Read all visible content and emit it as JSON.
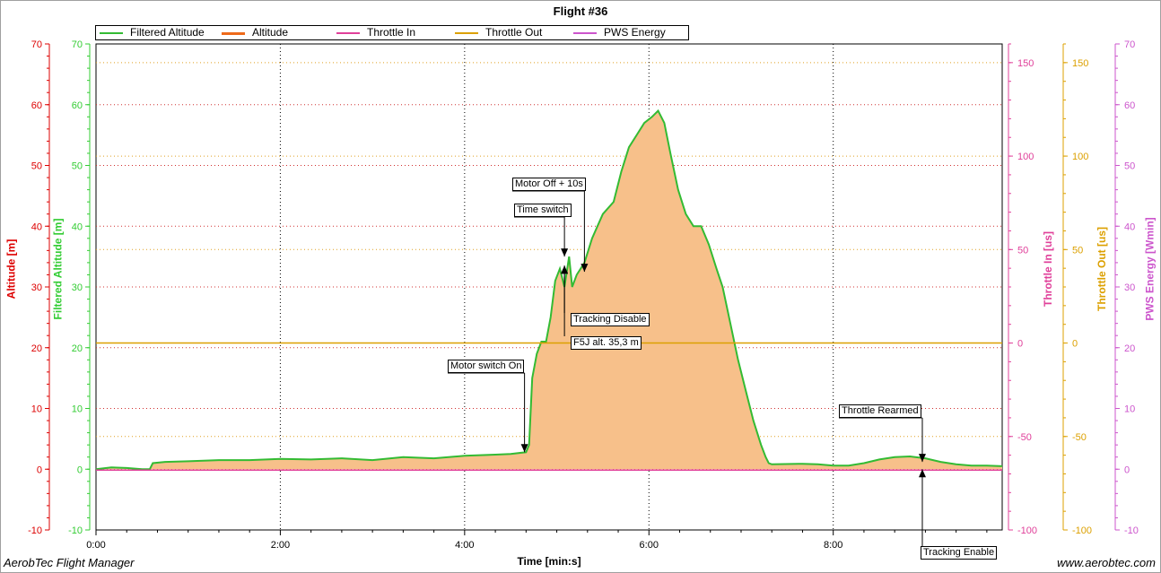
{
  "app": {
    "name": "AerobTec Flight Manager",
    "url": "www.aerobtec.com"
  },
  "chart_data": {
    "type": "area",
    "title": "Flight #36",
    "xlabel": "Time [min:s]",
    "x_unit": "seconds",
    "xlim": [
      0,
      590
    ],
    "x_ticks": [
      {
        "value": 0,
        "label": "0:00"
      },
      {
        "value": 120,
        "label": "2:00"
      },
      {
        "value": 240,
        "label": "4:00"
      },
      {
        "value": 360,
        "label": "6:00"
      },
      {
        "value": 480,
        "label": "8:00"
      }
    ],
    "grid": true,
    "axes": [
      {
        "id": "altitude",
        "label": "Altitude [m]",
        "color": "#dd0000",
        "side": "left",
        "ylim": [
          -10,
          70
        ],
        "ticks": [
          -10,
          0,
          10,
          20,
          30,
          40,
          50,
          60,
          70
        ]
      },
      {
        "id": "filtered",
        "label": "Filtered Altitude [m]",
        "color": "#33cc33",
        "side": "left",
        "ylim": [
          -10,
          70
        ],
        "ticks": [
          -10,
          0,
          10,
          20,
          30,
          40,
          50,
          60,
          70
        ]
      },
      {
        "id": "throttle_in",
        "label": "Throttle In [us]",
        "color": "#e0409a",
        "side": "right",
        "ylim": [
          -100,
          160
        ],
        "ticks": [
          -100,
          -50,
          0,
          50,
          100,
          150
        ]
      },
      {
        "id": "throttle_out",
        "label": "Throttle Out [us]",
        "color": "#dca000",
        "side": "right",
        "ylim": [
          -100,
          160
        ],
        "ticks": [
          -100,
          -50,
          0,
          50,
          100,
          150
        ]
      },
      {
        "id": "pws",
        "label": "PWS Energy [Wmin]",
        "color": "#cc55cc",
        "side": "right",
        "ylim": [
          -10,
          70
        ],
        "ticks": [
          -10,
          0,
          10,
          20,
          30,
          40,
          50,
          60,
          70
        ]
      }
    ],
    "legend": {
      "placement": "top-left",
      "entries": [
        {
          "name": "Filtered Altitude",
          "color": "#33bb33"
        },
        {
          "name": "Altitude",
          "color": "#ee6a1a"
        },
        {
          "name": "Throttle In",
          "color": "#e0409a"
        },
        {
          "name": "Throttle Out",
          "color": "#dca000"
        },
        {
          "name": "PWS Energy",
          "color": "#cc55cc"
        }
      ]
    },
    "series": [
      {
        "name": "Filtered Altitude",
        "axis": "filtered",
        "color": "#33bb33",
        "fill": "#f7c08a",
        "points": [
          [
            0,
            0
          ],
          [
            10,
            0.3
          ],
          [
            20,
            0.2
          ],
          [
            30,
            0
          ],
          [
            35,
            0
          ],
          [
            37,
            1
          ],
          [
            45,
            1.2
          ],
          [
            60,
            1.3
          ],
          [
            80,
            1.5
          ],
          [
            100,
            1.5
          ],
          [
            120,
            1.7
          ],
          [
            140,
            1.6
          ],
          [
            160,
            1.8
          ],
          [
            180,
            1.5
          ],
          [
            200,
            2
          ],
          [
            220,
            1.8
          ],
          [
            240,
            2.2
          ],
          [
            260,
            2.4
          ],
          [
            270,
            2.5
          ],
          [
            280,
            2.8
          ],
          [
            282,
            4
          ],
          [
            284,
            15
          ],
          [
            287,
            19
          ],
          [
            290,
            21
          ],
          [
            293,
            21
          ],
          [
            296,
            25
          ],
          [
            299,
            31
          ],
          [
            302,
            33
          ],
          [
            305,
            30
          ],
          [
            308,
            35
          ],
          [
            310,
            30
          ],
          [
            313,
            32
          ],
          [
            318,
            34
          ],
          [
            323,
            38
          ],
          [
            330,
            42
          ],
          [
            337,
            44
          ],
          [
            342,
            49
          ],
          [
            347,
            53
          ],
          [
            352,
            55
          ],
          [
            357,
            57
          ],
          [
            362,
            58
          ],
          [
            366,
            59
          ],
          [
            370,
            57
          ],
          [
            374,
            52
          ],
          [
            379,
            46
          ],
          [
            384,
            42
          ],
          [
            389,
            40
          ],
          [
            394,
            40
          ],
          [
            399,
            37
          ],
          [
            404,
            33
          ],
          [
            408,
            30
          ],
          [
            413,
            24
          ],
          [
            418,
            18
          ],
          [
            423,
            13
          ],
          [
            428,
            8
          ],
          [
            433,
            4
          ],
          [
            436,
            2
          ],
          [
            438,
            1
          ],
          [
            440,
            0.8
          ],
          [
            460,
            0.9
          ],
          [
            470,
            0.8
          ],
          [
            480,
            0.6
          ],
          [
            490,
            0.6
          ],
          [
            500,
            1
          ],
          [
            510,
            1.6
          ],
          [
            520,
            2
          ],
          [
            530,
            2.1
          ],
          [
            540,
            1.8
          ],
          [
            550,
            1.2
          ],
          [
            560,
            0.8
          ],
          [
            570,
            0.6
          ],
          [
            580,
            0.6
          ],
          [
            590,
            0.5
          ]
        ]
      },
      {
        "name": "Throttle In",
        "axis": "throttle_in",
        "color": "#e0409a",
        "points": [
          [
            0,
            -68
          ],
          [
            590,
            -68
          ]
        ]
      },
      {
        "name": "Throttle Out",
        "axis": "throttle_out",
        "color": "#dca000",
        "points": [
          [
            0,
            0
          ],
          [
            590,
            0
          ]
        ]
      }
    ],
    "annotations": [
      {
        "label": "Motor switch On",
        "x": 279,
        "y": 2.8
      },
      {
        "label": "Motor Off + 10s",
        "x": 318,
        "y": 32.5
      },
      {
        "label": "Time switch",
        "x": 305,
        "y": 35
      },
      {
        "label": "Tracking Disable",
        "x": 305,
        "y": 33.5
      },
      {
        "label": "F5J alt. 35,3 m",
        "x": 305,
        "y": 33.5
      },
      {
        "label": "Throttle Rearmed",
        "x": 538,
        "y": 1.2
      },
      {
        "label": "Tracking Enable",
        "x": 538,
        "y": 0
      }
    ]
  }
}
